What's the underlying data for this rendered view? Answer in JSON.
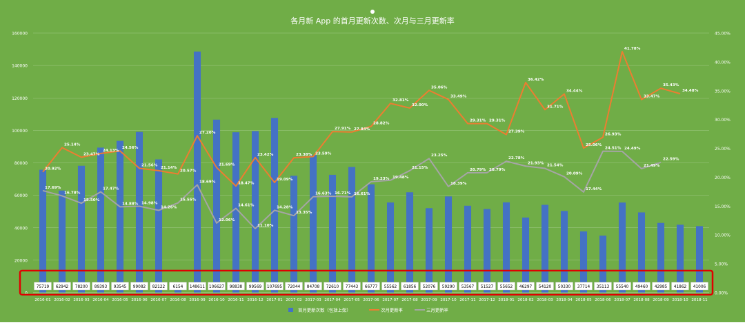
{
  "colors": {
    "background": "#70ad47",
    "bar": "#4472c4",
    "next_month_line": "#ed7d31",
    "three_month_line": "#a5a5a5",
    "highlight_box": "#e00000",
    "text": "#ffffff"
  },
  "chart_data": {
    "type": "bar",
    "title": "各月新 App 的首月更新次数、次月与三月更新率",
    "categories": [
      "2016-01",
      "2016-02",
      "2016-03",
      "2016-04",
      "2016-05",
      "2016-06",
      "2016-07",
      "2016-08",
      "2016-09",
      "2016-10",
      "2016-11",
      "2016-12",
      "2017-01",
      "2017-02",
      "2017-03",
      "2017-04",
      "2017-05",
      "2017-06",
      "2017-07",
      "2017-08",
      "2017-09",
      "2017-10",
      "2017-11",
      "2017-12",
      "2018-01",
      "2018-02",
      "2018-03",
      "2018-04",
      "2018-05",
      "2018-06",
      "2018-07",
      "2018-08",
      "2018-09",
      "2018-10",
      "2018-11"
    ],
    "category_labels": [
      "2016-01",
      "2016-02",
      "2016-03",
      "2016-04",
      "2016-05",
      "2016-06",
      "2016-07",
      "2016-08",
      "2016-09",
      "2016-10",
      "2016-11",
      "2016-12",
      "2017-01",
      "2017-02",
      "2017-03",
      "2017-04",
      "2017-05",
      "2017-06",
      "2017-07",
      "2017-08",
      "2017-09",
      "2017-10",
      "2017-11",
      "2017-12",
      "2018-01",
      "2018-02",
      "2018-03",
      "2018-04",
      "2018-05",
      "2018-06",
      "2018-07",
      "2018-08",
      "2018-09",
      "2018-10",
      "2018-11"
    ],
    "bar_label_values": [
      75719,
      62942,
      78200,
      89393,
      93545,
      99082,
      82122,
      6154,
      148611,
      106627,
      98838,
      99569,
      107695,
      72044,
      84708,
      72610,
      77443,
      66777,
      55562,
      61856,
      52076,
      59290,
      53567,
      51527,
      55652,
      46297,
      54120,
      50330,
      37714,
      35113,
      55540,
      49460,
      42985,
      41862,
      41006
    ],
    "series": [
      {
        "name": "首月更新次数（包括上架）",
        "type": "bar",
        "axis": "left",
        "values": [
          75719,
          62942,
          78200,
          89393,
          93545,
          99082,
          82122,
          6154,
          148611,
          106627,
          98838,
          99569,
          107695,
          72044,
          84708,
          72610,
          77443,
          66777,
          55562,
          61856,
          52076,
          59290,
          53567,
          51527,
          55652,
          46297,
          54120,
          50330,
          37714,
          35113,
          55540,
          49460,
          42985,
          41862,
          41006
        ]
      },
      {
        "name": "次月更新率",
        "type": "line",
        "axis": "right",
        "values": [
          20.92,
          25.14,
          23.47,
          24.13,
          24.56,
          21.56,
          21.14,
          20.57,
          27.2,
          21.69,
          18.47,
          23.42,
          19.09,
          23.38,
          23.59,
          27.91,
          27.84,
          28.82,
          32.81,
          32.0,
          35.06,
          33.49,
          29.31,
          29.31,
          27.39,
          36.42,
          31.71,
          34.44,
          25.06,
          26.93,
          41.78,
          33.47,
          35.43,
          34.48,
          null
        ],
        "labels": [
          "20.92%",
          "25.14%",
          "23.47%",
          "24.13%",
          "24.56%",
          "21.56%",
          "21.14%",
          "20.57%",
          "27.20%",
          "21.69%",
          "18.47%",
          "23.42%",
          "19.09%",
          "23.38%",
          "23.59%",
          "27.91%",
          "27.84%",
          "28.82%",
          "32.81%",
          "32.00%",
          "35.06%",
          "33.49%",
          "29.31%",
          "29.31%",
          "27.39%",
          "36.42%",
          "31.71%",
          "34.44%",
          "25.06%",
          "26.93%",
          "41.78%",
          "33.47%",
          "35.43%",
          "34.48%",
          null
        ]
      },
      {
        "name": "三月更新率",
        "type": "line",
        "axis": "right",
        "values": [
          17.69,
          16.78,
          15.5,
          17.47,
          14.88,
          14.98,
          14.26,
          15.55,
          18.69,
          12.06,
          14.61,
          11.1,
          14.28,
          13.35,
          16.63,
          16.71,
          16.61,
          19.23,
          19.48,
          21.15,
          23.25,
          18.39,
          20.79,
          20.79,
          22.78,
          21.93,
          21.54,
          20.09,
          17.44,
          24.51,
          24.49,
          21.49,
          22.59,
          null,
          null
        ],
        "labels": [
          "17.69%",
          "16.78%",
          "15.50%",
          "17.47%",
          "14.88%",
          "14.98%",
          "14.26%",
          "15.55%",
          "18.69%",
          "12.06%",
          "14.61%",
          "11.10%",
          "14.28%",
          "13.35%",
          "16.63%",
          "16.71%",
          "16.61%",
          "19.23%",
          "19.48%",
          "21.15%",
          "23.25%",
          "18.39%",
          "20.79%",
          "20.79%",
          "22.78%",
          "21.93%",
          "21.54%",
          "20.09%",
          "17.44%",
          "24.51%",
          "24.49%",
          "21.49%",
          "22.59%",
          null,
          null
        ]
      }
    ],
    "y_left": {
      "min": 0,
      "max": 160000,
      "ticks": [
        "0",
        "20000",
        "40000",
        "60000",
        "80000",
        "100000",
        "120000",
        "140000",
        "160000"
      ]
    },
    "y_right": {
      "min": 0,
      "max": 45,
      "ticks": [
        "0.00%",
        "5.00%",
        "10.00%",
        "15.00%",
        "20.00%",
        "25.00%",
        "30.00%",
        "35.00%",
        "40.00%",
        "45.00%"
      ]
    },
    "grid": true,
    "legend_position": "bottom",
    "highlight": "red box around bar count labels"
  }
}
